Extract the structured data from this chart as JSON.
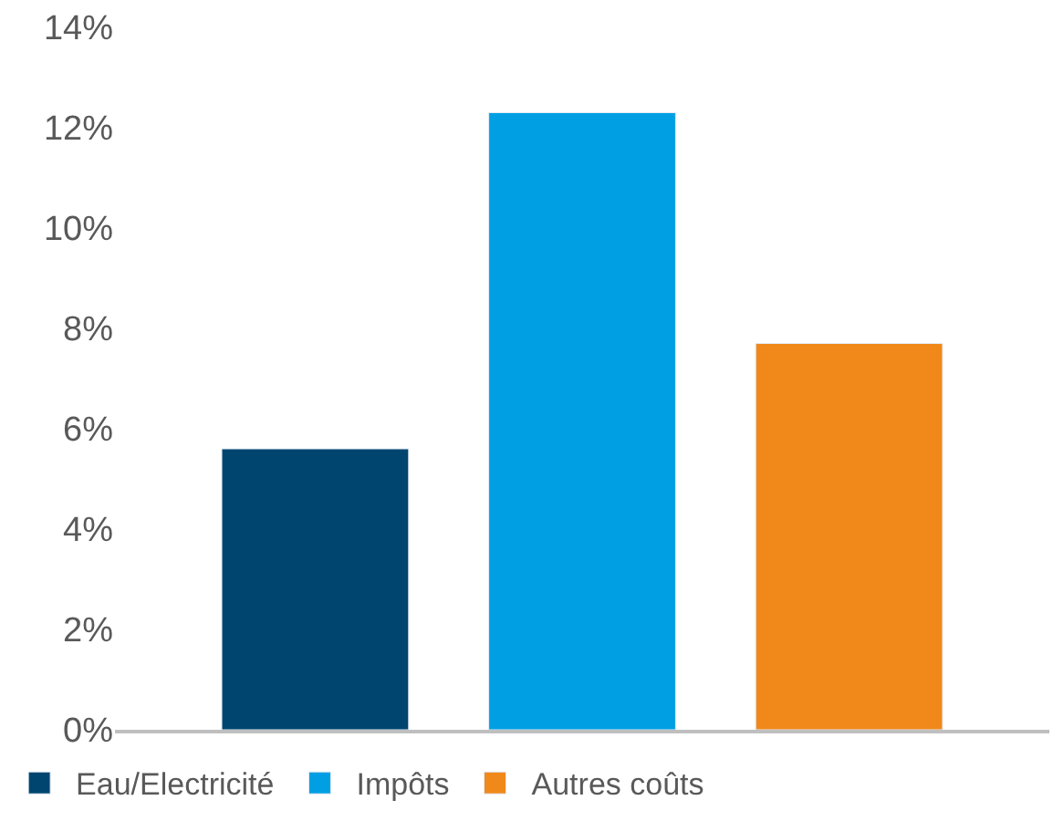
{
  "chart_data": {
    "type": "bar",
    "categories": [
      null,
      null,
      null
    ],
    "series": [
      {
        "name": "Eau/Electricité",
        "color": "#00456f",
        "values": [
          5.6,
          null,
          null
        ]
      },
      {
        "name": "Impôts",
        "color": "#009fe3",
        "values": [
          null,
          12.3,
          null
        ]
      },
      {
        "name": "Autres coûts",
        "color": "#f0891a",
        "values": [
          null,
          null,
          7.7
        ]
      }
    ],
    "ylim": [
      0,
      14
    ],
    "yticks": [
      {
        "value": 0,
        "label": "0%"
      },
      {
        "value": 2,
        "label": "2%"
      },
      {
        "value": 4,
        "label": "4%"
      },
      {
        "value": 6,
        "label": "6%"
      },
      {
        "value": 8,
        "label": "8%"
      },
      {
        "value": 10,
        "label": "10%"
      },
      {
        "value": 12,
        "label": "12%"
      },
      {
        "value": 14,
        "label": "14%"
      }
    ],
    "legend": "bottom"
  }
}
